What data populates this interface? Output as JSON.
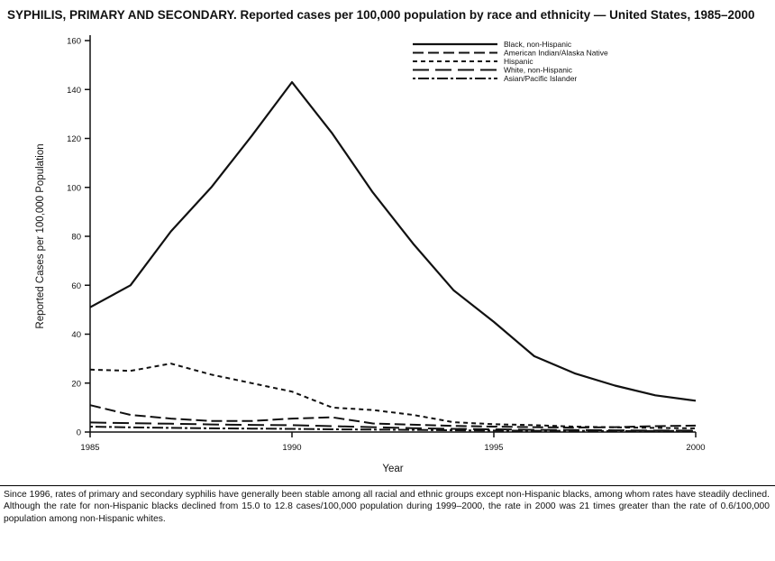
{
  "title": "SYPHILIS, PRIMARY AND SECONDARY. Reported cases per 100,000 population by race and ethnicity — United States, 1985–2000",
  "footnote": "Since 1996, rates of primary and secondary syphilis have generally been stable among all racial and ethnic groups except non-Hispanic blacks, among whom rates have steadily declined. Although the rate for non-Hispanic blacks declined from 15.0 to 12.8 cases/100,000 population during 1999–2000, the rate in 2000 was 21 times greater than the rate of 0.6/100,000 population among non-Hispanic whites.",
  "chart_data": {
    "type": "line",
    "title": "SYPHILIS, PRIMARY AND SECONDARY. Reported cases per 100,000 population by race and ethnicity — United States, 1985–2000",
    "xlabel": "Year",
    "ylabel": "Reported Cases per 100,000 Population",
    "x": [
      1985,
      1986,
      1987,
      1988,
      1989,
      1990,
      1991,
      1992,
      1993,
      1994,
      1995,
      1996,
      1997,
      1998,
      1999,
      2000
    ],
    "xticks": [
      1985,
      1990,
      1995,
      2000
    ],
    "yticks": [
      0,
      20,
      40,
      60,
      80,
      100,
      120,
      140,
      160
    ],
    "ylim": [
      0,
      160
    ],
    "xlim": [
      1985,
      2000
    ],
    "grid": false,
    "legend_position": "top-center-inside",
    "color": "#111111",
    "series": [
      {
        "name": "Black, non-Hispanic",
        "dash": "",
        "width": 2.2,
        "values": [
          51,
          60,
          82,
          100,
          121,
          143,
          122,
          98,
          77,
          58,
          45,
          31,
          24,
          19,
          15,
          12.8
        ]
      },
      {
        "name": "American Indian/Alaska Native",
        "dash": "12,5",
        "width": 2,
        "values": [
          11,
          7,
          5.5,
          4.5,
          4.5,
          5.5,
          6,
          3.5,
          3,
          2.5,
          2.2,
          2,
          1.8,
          2,
          2.4,
          2.6
        ]
      },
      {
        "name": "Hispanic",
        "dash": "5,4",
        "width": 2,
        "values": [
          25.5,
          25,
          28,
          23.5,
          20,
          16.5,
          10,
          9,
          7,
          4,
          3.2,
          2.8,
          2.2,
          1.9,
          1.7,
          1.5
        ]
      },
      {
        "name": "White, non-Hispanic",
        "dash": "18,7",
        "width": 2,
        "values": [
          3.9,
          3.6,
          3.4,
          3.1,
          2.9,
          2.8,
          2.4,
          2.0,
          1.6,
          1.3,
          1.1,
          0.9,
          0.8,
          0.7,
          0.6,
          0.6
        ]
      },
      {
        "name": "Asian/Pacific Islander",
        "dash": "3,3,12,3",
        "width": 2,
        "values": [
          2.2,
          1.9,
          1.7,
          1.5,
          1.4,
          1.3,
          1.1,
          1.0,
          0.9,
          0.7,
          0.6,
          0.5,
          0.5,
          0.4,
          0.4,
          0.5
        ]
      }
    ]
  }
}
